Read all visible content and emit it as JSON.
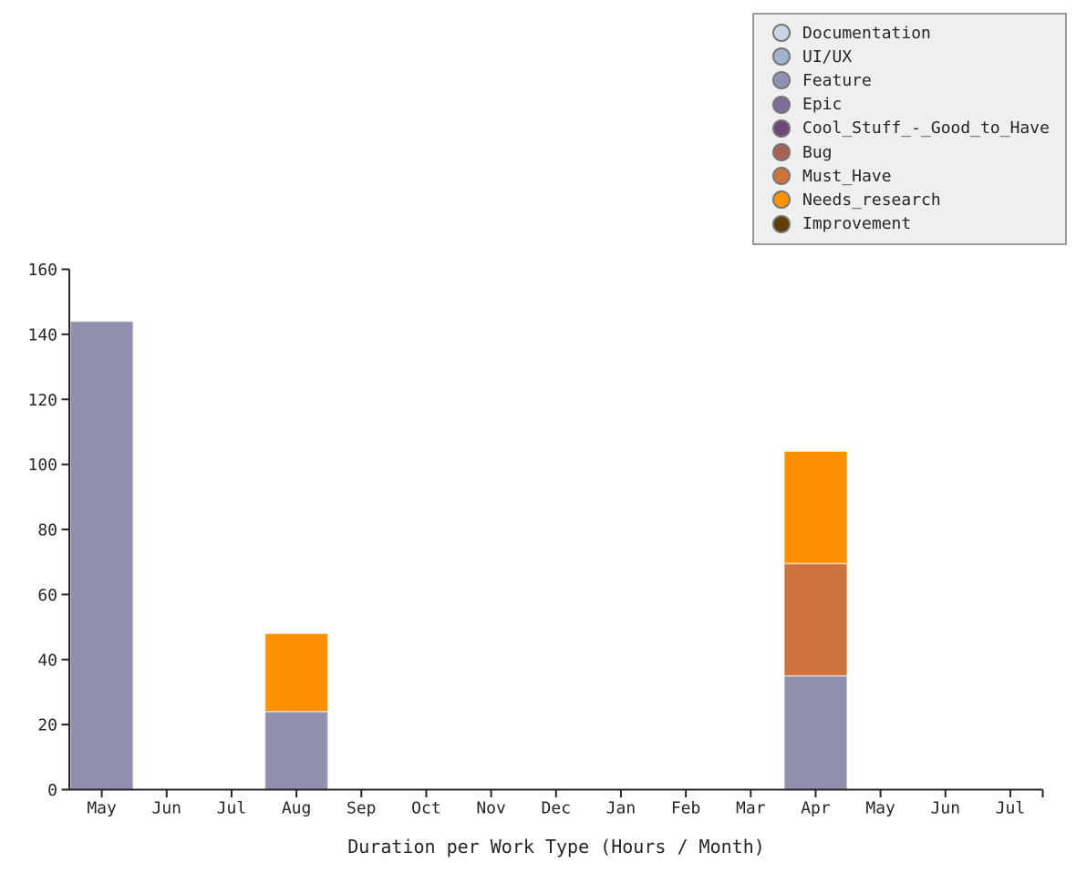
{
  "chart_data": {
    "type": "bar",
    "stacked": true,
    "title": "Duration per Work Type (Hours / Month)",
    "title_position": "bottom",
    "categories": [
      "May",
      "Jun",
      "Jul",
      "Aug",
      "Sep",
      "Oct",
      "Nov",
      "Dec",
      "Jan",
      "Feb",
      "Mar",
      "Apr",
      "May",
      "Jun",
      "Jul"
    ],
    "ylim": [
      0,
      160
    ],
    "ytick_step": 20,
    "yticks": [
      0,
      20,
      40,
      60,
      80,
      100,
      120,
      140,
      160
    ],
    "grid": false,
    "legend_position": "top-right",
    "series": [
      {
        "name": "Documentation",
        "color": "#ccd5e8",
        "values": [
          0,
          0,
          0,
          0,
          0,
          0,
          0,
          0,
          0,
          0,
          0,
          0,
          0,
          0,
          0
        ]
      },
      {
        "name": "UI/UX",
        "color": "#a1b2ce",
        "values": [
          0,
          0,
          0,
          0,
          0,
          0,
          0,
          0,
          0,
          0,
          0,
          0,
          0,
          0,
          0
        ]
      },
      {
        "name": "Feature",
        "color": "#9190ae",
        "values": [
          144,
          0,
          0,
          24,
          0,
          0,
          0,
          0,
          0,
          0,
          0,
          35,
          0,
          0,
          0
        ]
      },
      {
        "name": "Epic",
        "color": "#7e6b97",
        "values": [
          0,
          0,
          0,
          0,
          0,
          0,
          0,
          0,
          0,
          0,
          0,
          0,
          0,
          0,
          0
        ]
      },
      {
        "name": "Cool_Stuff_-_Good_to_Have",
        "color": "#6f4678",
        "values": [
          0,
          0,
          0,
          0,
          0,
          0,
          0,
          0,
          0,
          0,
          0,
          0,
          0,
          0,
          0
        ]
      },
      {
        "name": "Bug",
        "color": "#aa5f53",
        "values": [
          0,
          0,
          0,
          0,
          0,
          0,
          0,
          0,
          0,
          0,
          0,
          0,
          0,
          0,
          0
        ]
      },
      {
        "name": "Must_Have",
        "color": "#cd743c",
        "values": [
          0,
          0,
          0,
          0,
          0,
          0,
          0,
          0,
          0,
          0,
          0,
          34.5,
          0,
          0,
          0
        ]
      },
      {
        "name": "Needs_research",
        "color": "#ff9000",
        "values": [
          0,
          0,
          0,
          24,
          0,
          0,
          0,
          0,
          0,
          0,
          0,
          34.5,
          0,
          0,
          0
        ]
      },
      {
        "name": "Improvement",
        "color": "#603e06",
        "values": [
          0,
          0,
          0,
          0,
          0,
          0,
          0,
          0,
          0,
          0,
          0,
          0,
          0,
          0,
          0
        ]
      }
    ]
  },
  "colors": {
    "background": "#ffffff",
    "axis": "#262626",
    "tick_text": "#262626",
    "bar_edge": "rgba(255,255,255,0.5)",
    "legend_bg": "#efefef",
    "legend_border": "#9a9a9a",
    "marker_stroke": "#767676"
  }
}
